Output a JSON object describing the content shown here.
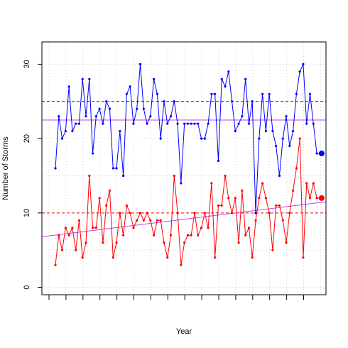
{
  "chart_data": {
    "type": "line",
    "title": "",
    "xlabel": "Year",
    "ylabel": "Number of Storms",
    "ylim": [
      -1,
      33
    ],
    "yticks": [
      0,
      10,
      20,
      30
    ],
    "grid": true,
    "x_count": 79,
    "series": [
      {
        "color": "#0000ff",
        "values": [
          16,
          23,
          20,
          21,
          27,
          21,
          22,
          22,
          28,
          23,
          28,
          18,
          23,
          24,
          22,
          25,
          24,
          16,
          16,
          21,
          15,
          26,
          27,
          22,
          24,
          30,
          24,
          22,
          23,
          28,
          26,
          20,
          25,
          22,
          23,
          25,
          22,
          14,
          22,
          22,
          22,
          22,
          22,
          20,
          20,
          22,
          26,
          26,
          17,
          28,
          27,
          29,
          25,
          21,
          22,
          23,
          28,
          22,
          25,
          10,
          20,
          26,
          21,
          26,
          21,
          19,
          15,
          20,
          23,
          19,
          21,
          26,
          29,
          30,
          22,
          26,
          22,
          18,
          18
        ]
      },
      {
        "color": "#ff0000",
        "values": [
          3,
          7,
          5,
          8,
          7,
          8,
          5,
          9,
          4,
          6,
          15,
          8,
          8,
          12,
          6,
          11,
          13,
          4,
          6,
          10,
          7,
          11,
          10,
          8,
          9,
          10,
          9,
          10,
          9,
          7,
          9,
          9,
          6,
          4,
          7,
          15,
          10,
          3,
          6,
          7,
          7,
          10,
          7,
          8,
          10,
          8,
          14,
          4,
          11,
          11,
          15,
          12,
          10,
          12,
          6,
          13,
          7,
          8,
          4,
          9,
          12,
          14,
          12,
          10,
          5,
          11,
          11,
          9,
          6,
          10,
          13,
          16,
          20,
          4,
          14,
          12,
          14,
          12,
          12
        ]
      }
    ],
    "reference_lines": [
      {
        "y": 25,
        "color": "#0000ff",
        "style": "dashed"
      },
      {
        "y": 22.5,
        "color": "#bb44ee",
        "style": "solid"
      },
      {
        "y": 10,
        "color": "#ff0000",
        "style": "dashed"
      }
    ],
    "trend_line": {
      "color": "#bb44ee",
      "y_start": 6.8,
      "y_end": 11.5
    }
  }
}
